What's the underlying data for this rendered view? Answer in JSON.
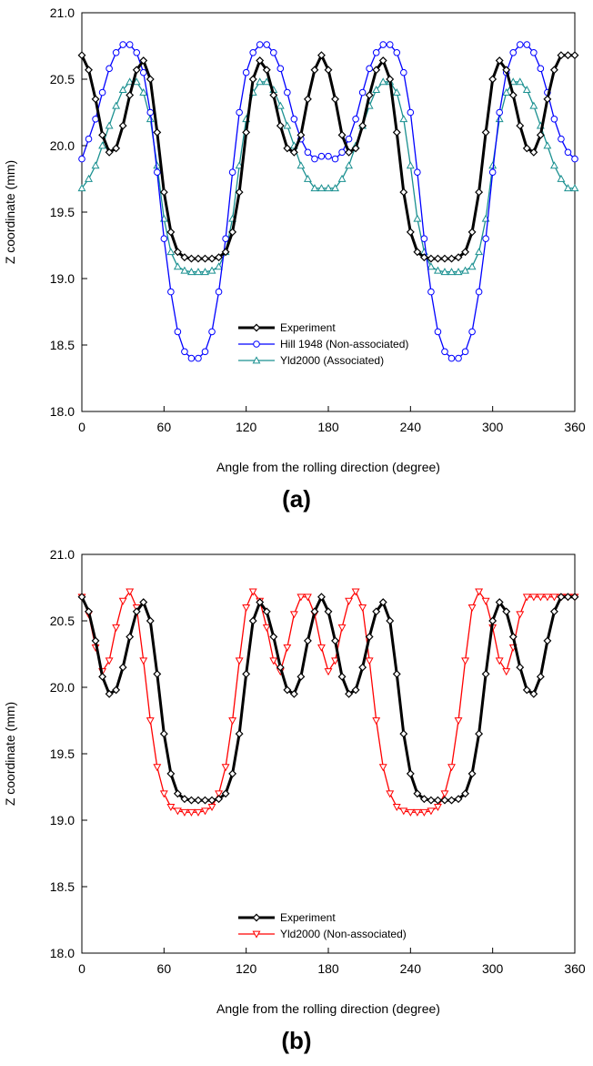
{
  "chart_data": [
    {
      "type": "line",
      "caption": "(a)",
      "xlabel": "Angle from the rolling direction (degree)",
      "ylabel": "Z coordinate (mm)",
      "xlim": [
        0,
        360
      ],
      "ylim": [
        18.0,
        21.0
      ],
      "xticks": [
        "0",
        "60",
        "120",
        "180",
        "240",
        "300",
        "360"
      ],
      "yticks": [
        "18.0",
        "18.5",
        "19.0",
        "19.5",
        "20.0",
        "20.5",
        "21.0"
      ],
      "grid": false,
      "legend_position": "bottom-center",
      "x": [
        0,
        5,
        10,
        15,
        20,
        25,
        30,
        35,
        40,
        45,
        50,
        55,
        60,
        65,
        70,
        75,
        80,
        85,
        90,
        95,
        100,
        105,
        110,
        115,
        120,
        125,
        130,
        135,
        140,
        145,
        150,
        155,
        160,
        165,
        170,
        175,
        180,
        185,
        190,
        195,
        200,
        205,
        210,
        215,
        220,
        225,
        230,
        235,
        240,
        245,
        250,
        255,
        260,
        265,
        270,
        275,
        280,
        285,
        290,
        295,
        300,
        305,
        310,
        315,
        320,
        325,
        330,
        335,
        340,
        345,
        350,
        355,
        360
      ],
      "series": [
        {
          "name": "Experiment",
          "color": "#000000",
          "marker": "diamond",
          "values": [
            20.68,
            20.57,
            20.35,
            20.08,
            19.95,
            19.98,
            20.15,
            20.38,
            20.57,
            20.64,
            20.5,
            20.1,
            19.65,
            19.35,
            19.2,
            19.16,
            19.15,
            19.15,
            19.15,
            19.15,
            19.16,
            19.2,
            19.35,
            19.65,
            20.1,
            20.5,
            20.64,
            20.57,
            20.38,
            20.15,
            19.98,
            19.95,
            20.08,
            20.35,
            20.57,
            20.68,
            20.57,
            20.35,
            20.08,
            19.95,
            19.98,
            20.15,
            20.38,
            20.57,
            20.64,
            20.5,
            20.1,
            19.65,
            19.35,
            19.2,
            19.16,
            19.15,
            19.15,
            19.15,
            19.15,
            19.16,
            19.2,
            19.35,
            19.65,
            20.1,
            20.5,
            20.64,
            20.57,
            20.38,
            20.15,
            19.98,
            19.95,
            20.08,
            20.35,
            20.57,
            20.68,
            20.68,
            20.68
          ]
        },
        {
          "name": "Hill 1948 (Non-associated)",
          "color": "#0000ff",
          "marker": "circle",
          "values": [
            19.9,
            20.05,
            20.2,
            20.4,
            20.58,
            20.7,
            20.76,
            20.76,
            20.7,
            20.55,
            20.25,
            19.8,
            19.3,
            18.9,
            18.6,
            18.45,
            18.4,
            18.4,
            18.45,
            18.6,
            18.9,
            19.3,
            19.8,
            20.25,
            20.55,
            20.7,
            20.76,
            20.76,
            20.7,
            20.58,
            20.4,
            20.2,
            20.05,
            19.95,
            19.9,
            19.92,
            19.92,
            19.9,
            19.95,
            20.05,
            20.2,
            20.4,
            20.58,
            20.7,
            20.76,
            20.76,
            20.7,
            20.55,
            20.25,
            19.8,
            19.3,
            18.9,
            18.6,
            18.45,
            18.4,
            18.4,
            18.45,
            18.6,
            18.9,
            19.3,
            19.8,
            20.25,
            20.55,
            20.7,
            20.76,
            20.76,
            20.7,
            20.58,
            20.4,
            20.2,
            20.05,
            19.95,
            19.9
          ]
        },
        {
          "name": "Yld2000 (Associated)",
          "color": "#1a9090",
          "marker": "triangle-up",
          "values": [
            19.68,
            19.75,
            19.85,
            20.0,
            20.15,
            20.3,
            20.42,
            20.48,
            20.48,
            20.4,
            20.2,
            19.85,
            19.45,
            19.2,
            19.09,
            19.06,
            19.05,
            19.05,
            19.05,
            19.06,
            19.09,
            19.2,
            19.45,
            19.85,
            20.2,
            20.4,
            20.48,
            20.48,
            20.42,
            20.3,
            20.15,
            20.0,
            19.85,
            19.75,
            19.68,
            19.68,
            19.68,
            19.68,
            19.75,
            19.85,
            20.0,
            20.15,
            20.3,
            20.42,
            20.48,
            20.48,
            20.4,
            20.2,
            19.85,
            19.45,
            19.2,
            19.09,
            19.06,
            19.05,
            19.05,
            19.05,
            19.06,
            19.09,
            19.2,
            19.45,
            19.85,
            20.2,
            20.4,
            20.48,
            20.48,
            20.42,
            20.3,
            20.15,
            20.0,
            19.85,
            19.75,
            19.68,
            19.68
          ]
        }
      ]
    },
    {
      "type": "line",
      "caption": "(b)",
      "xlabel": "Angle from the rolling direction (degree)",
      "ylabel": "Z coordinate (mm)",
      "xlim": [
        0,
        360
      ],
      "ylim": [
        18.0,
        21.0
      ],
      "xticks": [
        "0",
        "60",
        "120",
        "180",
        "240",
        "300",
        "360"
      ],
      "yticks": [
        "18.0",
        "18.5",
        "19.0",
        "19.5",
        "20.0",
        "20.5",
        "21.0"
      ],
      "grid": false,
      "legend_position": "bottom-center",
      "x": [
        0,
        5,
        10,
        15,
        20,
        25,
        30,
        35,
        40,
        45,
        50,
        55,
        60,
        65,
        70,
        75,
        80,
        85,
        90,
        95,
        100,
        105,
        110,
        115,
        120,
        125,
        130,
        135,
        140,
        145,
        150,
        155,
        160,
        165,
        170,
        175,
        180,
        185,
        190,
        195,
        200,
        205,
        210,
        215,
        220,
        225,
        230,
        235,
        240,
        245,
        250,
        255,
        260,
        265,
        270,
        275,
        280,
        285,
        290,
        295,
        300,
        305,
        310,
        315,
        320,
        325,
        330,
        335,
        340,
        345,
        350,
        355,
        360
      ],
      "series": [
        {
          "name": "Experiment",
          "color": "#000000",
          "marker": "diamond",
          "values": [
            20.68,
            20.57,
            20.35,
            20.08,
            19.95,
            19.98,
            20.15,
            20.38,
            20.57,
            20.64,
            20.5,
            20.1,
            19.65,
            19.35,
            19.2,
            19.16,
            19.15,
            19.15,
            19.15,
            19.15,
            19.16,
            19.2,
            19.35,
            19.65,
            20.1,
            20.5,
            20.64,
            20.57,
            20.38,
            20.15,
            19.98,
            19.95,
            20.08,
            20.35,
            20.57,
            20.68,
            20.57,
            20.35,
            20.08,
            19.95,
            19.98,
            20.15,
            20.38,
            20.57,
            20.64,
            20.5,
            20.1,
            19.65,
            19.35,
            19.2,
            19.16,
            19.15,
            19.15,
            19.15,
            19.15,
            19.16,
            19.2,
            19.35,
            19.65,
            20.1,
            20.5,
            20.64,
            20.57,
            20.38,
            20.15,
            19.98,
            19.95,
            20.08,
            20.35,
            20.57,
            20.68,
            20.68,
            20.68
          ]
        },
        {
          "name": "Yld2000 (Non-associated)",
          "color": "#ff0000",
          "marker": "triangle-down",
          "values": [
            20.68,
            20.55,
            20.3,
            20.12,
            20.2,
            20.45,
            20.65,
            20.72,
            20.6,
            20.2,
            19.75,
            19.4,
            19.2,
            19.1,
            19.07,
            19.06,
            19.06,
            19.06,
            19.07,
            19.1,
            19.2,
            19.4,
            19.75,
            20.2,
            20.6,
            20.72,
            20.65,
            20.45,
            20.2,
            20.12,
            20.3,
            20.55,
            20.68,
            20.68,
            20.55,
            20.3,
            20.12,
            20.2,
            20.45,
            20.65,
            20.72,
            20.6,
            20.2,
            19.75,
            19.4,
            19.2,
            19.1,
            19.07,
            19.06,
            19.06,
            19.06,
            19.07,
            19.1,
            19.2,
            19.4,
            19.75,
            20.2,
            20.6,
            20.72,
            20.65,
            20.45,
            20.2,
            20.12,
            20.3,
            20.55,
            20.68,
            20.68,
            20.68,
            20.68,
            20.68,
            20.68,
            20.68,
            20.68
          ]
        }
      ]
    }
  ]
}
